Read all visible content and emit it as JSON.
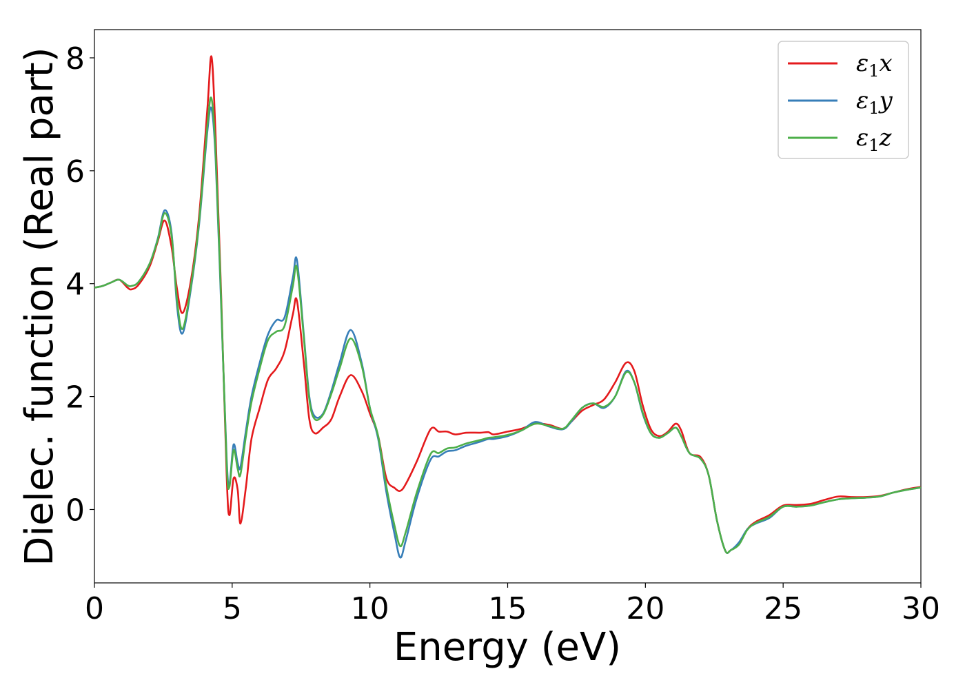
{
  "chart_data": {
    "type": "line",
    "title": "",
    "xlabel": "Energy (eV)",
    "ylabel": "Dielec. function (Real part)",
    "xlim": [
      0,
      30
    ],
    "ylim": [
      -1.3,
      8.5
    ],
    "xticks": [
      0,
      5,
      10,
      15,
      20,
      25,
      30
    ],
    "yticks": [
      0,
      2,
      4,
      6,
      8
    ],
    "grid": false,
    "legend_position": "top-right",
    "series": [
      {
        "name": "ε1x",
        "legend": {
          "symbol": "ε",
          "sub": "1",
          "axis": "x"
        },
        "color": "#e41a1c",
        "x": [
          0,
          0.3,
          0.6,
          0.9,
          1.2,
          1.35,
          1.6,
          2.0,
          2.3,
          2.55,
          2.8,
          3.0,
          3.2,
          3.5,
          3.8,
          4.1,
          4.25,
          4.4,
          4.6,
          4.8,
          4.9,
          5.05,
          5.2,
          5.3,
          5.5,
          5.7,
          6.0,
          6.3,
          6.6,
          6.9,
          7.2,
          7.35,
          7.6,
          7.8,
          8.0,
          8.3,
          8.6,
          8.9,
          9.3,
          9.7,
          10.0,
          10.3,
          10.6,
          10.9,
          11.1,
          11.3,
          11.7,
          12.2,
          12.5,
          12.8,
          13.1,
          13.5,
          14.0,
          14.3,
          14.5,
          15.0,
          15.5,
          16.0,
          16.5,
          17.0,
          17.3,
          17.7,
          18.1,
          18.5,
          18.9,
          19.3,
          19.6,
          19.9,
          20.2,
          20.5,
          20.8,
          21.1,
          21.3,
          21.6,
          22.0,
          22.3,
          22.6,
          22.9,
          23.1,
          23.4,
          23.7,
          24.0,
          24.5,
          25.0,
          25.5,
          26.0,
          26.5,
          27.0,
          27.5,
          28.0,
          28.5,
          29.0,
          29.5,
          30.0
        ],
        "values": [
          3.93,
          3.96,
          4.02,
          4.07,
          3.93,
          3.9,
          3.98,
          4.3,
          4.75,
          5.12,
          4.65,
          3.9,
          3.48,
          4.05,
          5.2,
          7.1,
          8.02,
          6.6,
          3.8,
          0.6,
          -0.1,
          0.55,
          0.35,
          -0.25,
          0.4,
          1.25,
          1.8,
          2.3,
          2.5,
          2.8,
          3.45,
          3.7,
          2.6,
          1.6,
          1.35,
          1.45,
          1.6,
          2.0,
          2.38,
          2.1,
          1.7,
          1.3,
          0.55,
          0.38,
          0.33,
          0.45,
          0.85,
          1.42,
          1.38,
          1.38,
          1.33,
          1.36,
          1.36,
          1.37,
          1.33,
          1.38,
          1.43,
          1.52,
          1.5,
          1.43,
          1.55,
          1.75,
          1.85,
          1.95,
          2.25,
          2.6,
          2.45,
          1.85,
          1.42,
          1.3,
          1.37,
          1.52,
          1.4,
          1.0,
          0.93,
          0.6,
          -0.2,
          -0.73,
          -0.72,
          -0.6,
          -0.35,
          -0.22,
          -0.1,
          0.07,
          0.08,
          0.1,
          0.17,
          0.23,
          0.22,
          0.22,
          0.24,
          0.3,
          0.36,
          0.4
        ]
      },
      {
        "name": "ε1y",
        "legend": {
          "symbol": "ε",
          "sub": "1",
          "axis": "y"
        },
        "color": "#377eb8",
        "x": [
          0,
          0.3,
          0.6,
          0.9,
          1.2,
          1.35,
          1.6,
          2.0,
          2.3,
          2.55,
          2.8,
          3.0,
          3.2,
          3.5,
          3.8,
          4.1,
          4.25,
          4.4,
          4.6,
          4.8,
          4.9,
          5.05,
          5.2,
          5.3,
          5.5,
          5.7,
          6.0,
          6.3,
          6.6,
          6.9,
          7.2,
          7.35,
          7.6,
          7.8,
          8.0,
          8.3,
          8.6,
          8.9,
          9.3,
          9.7,
          10.0,
          10.3,
          10.6,
          10.9,
          11.1,
          11.3,
          11.7,
          12.2,
          12.5,
          12.8,
          13.1,
          13.5,
          14.0,
          14.3,
          14.5,
          15.0,
          15.5,
          16.0,
          16.5,
          17.0,
          17.3,
          17.7,
          18.1,
          18.5,
          18.9,
          19.3,
          19.6,
          19.9,
          20.2,
          20.5,
          20.8,
          21.1,
          21.3,
          21.6,
          22.0,
          22.3,
          22.6,
          22.9,
          23.1,
          23.4,
          23.7,
          24.0,
          24.5,
          25.0,
          25.5,
          26.0,
          26.5,
          27.0,
          27.5,
          28.0,
          28.5,
          29.0,
          29.5,
          30.0
        ],
        "values": [
          3.93,
          3.96,
          4.02,
          4.07,
          3.97,
          3.96,
          4.03,
          4.35,
          4.8,
          5.3,
          4.9,
          3.6,
          3.12,
          3.9,
          5.05,
          6.7,
          7.1,
          6.2,
          3.6,
          0.9,
          0.45,
          1.15,
          0.82,
          0.75,
          1.4,
          2.0,
          2.6,
          3.1,
          3.35,
          3.4,
          4.1,
          4.42,
          3.1,
          2.0,
          1.65,
          1.7,
          2.1,
          2.6,
          3.18,
          2.6,
          1.8,
          1.25,
          0.3,
          -0.45,
          -0.85,
          -0.55,
          0.2,
          0.88,
          0.94,
          1.03,
          1.05,
          1.13,
          1.2,
          1.25,
          1.25,
          1.3,
          1.4,
          1.55,
          1.47,
          1.42,
          1.55,
          1.8,
          1.88,
          1.8,
          2.0,
          2.45,
          2.25,
          1.7,
          1.35,
          1.27,
          1.35,
          1.45,
          1.3,
          1.0,
          0.9,
          0.6,
          -0.2,
          -0.73,
          -0.72,
          -0.58,
          -0.35,
          -0.25,
          -0.15,
          0.05,
          0.05,
          0.07,
          0.13,
          0.18,
          0.2,
          0.21,
          0.23,
          0.3,
          0.35,
          0.39
        ]
      },
      {
        "name": "ε1z",
        "legend": {
          "symbol": "ε",
          "sub": "1",
          "axis": "z"
        },
        "color": "#4daf4a",
        "x": [
          0,
          0.3,
          0.6,
          0.9,
          1.2,
          1.35,
          1.6,
          2.0,
          2.3,
          2.55,
          2.8,
          3.0,
          3.2,
          3.5,
          3.8,
          4.1,
          4.25,
          4.4,
          4.6,
          4.8,
          4.9,
          5.05,
          5.2,
          5.3,
          5.5,
          5.7,
          6.0,
          6.3,
          6.6,
          6.9,
          7.2,
          7.35,
          7.6,
          7.8,
          8.0,
          8.3,
          8.6,
          8.9,
          9.3,
          9.7,
          10.0,
          10.3,
          10.6,
          10.9,
          11.1,
          11.3,
          11.7,
          12.2,
          12.5,
          12.8,
          13.1,
          13.5,
          14.0,
          14.3,
          14.5,
          15.0,
          15.5,
          16.0,
          16.5,
          17.0,
          17.3,
          17.7,
          18.1,
          18.5,
          18.9,
          19.3,
          19.6,
          19.9,
          20.2,
          20.5,
          20.8,
          21.1,
          21.3,
          21.6,
          22.0,
          22.3,
          22.6,
          22.9,
          23.1,
          23.4,
          23.7,
          24.0,
          24.5,
          25.0,
          25.5,
          26.0,
          26.5,
          27.0,
          27.5,
          28.0,
          28.5,
          29.0,
          29.5,
          30.0
        ],
        "values": [
          3.93,
          3.96,
          4.02,
          4.07,
          3.97,
          3.96,
          4.03,
          4.35,
          4.78,
          5.25,
          4.85,
          3.7,
          3.2,
          3.95,
          5.1,
          6.8,
          7.28,
          6.3,
          3.7,
          0.8,
          0.4,
          1.05,
          0.72,
          0.62,
          1.3,
          1.9,
          2.5,
          3.0,
          3.15,
          3.25,
          3.95,
          4.28,
          3.05,
          1.95,
          1.6,
          1.68,
          2.05,
          2.5,
          3.03,
          2.55,
          1.8,
          1.3,
          0.4,
          -0.3,
          -0.65,
          -0.4,
          0.3,
          0.98,
          1.0,
          1.08,
          1.1,
          1.17,
          1.23,
          1.27,
          1.28,
          1.32,
          1.4,
          1.52,
          1.48,
          1.43,
          1.57,
          1.8,
          1.88,
          1.82,
          2.0,
          2.43,
          2.25,
          1.72,
          1.35,
          1.27,
          1.35,
          1.45,
          1.3,
          1.0,
          0.9,
          0.6,
          -0.2,
          -0.73,
          -0.72,
          -0.62,
          -0.36,
          -0.24,
          -0.13,
          0.05,
          0.05,
          0.07,
          0.13,
          0.18,
          0.2,
          0.21,
          0.23,
          0.3,
          0.35,
          0.39
        ]
      }
    ]
  }
}
